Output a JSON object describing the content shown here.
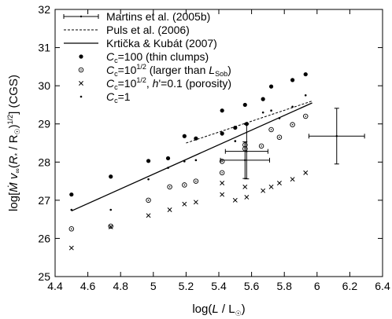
{
  "chart_data": {
    "type": "scatter",
    "xlabel": "log(L/L☉)",
    "ylabel": "log[Ṁ v∞(R*/R☉)^1/2] (CGS)",
    "xlim": [
      4.4,
      6.4
    ],
    "ylim": [
      25,
      32
    ],
    "xticks": [
      "4.4",
      "4.6",
      "4.8",
      "5",
      "5.2",
      "5.4",
      "5.6",
      "5.8",
      "6",
      "6.2",
      "6.4"
    ],
    "yticks": [
      "25",
      "26",
      "27",
      "28",
      "29",
      "30",
      "31",
      "32"
    ],
    "grid": false,
    "legend_position": "top-left",
    "legend": [
      "Martins et al. (2005b)",
      "Puls et al. (2006)",
      "Krtička & Kubát (2007)",
      "Cc=100 (thin clumps)",
      "Cc=10^1/2 (larger than L_Sob)",
      "Cc=10^1/2, h'=0.1 (porosity)",
      "Cc=1"
    ],
    "series": [
      {
        "name": "Martins et al. (2005b)",
        "marker": "errorbar",
        "points": [
          {
            "x": 5.57,
            "y": 28.28,
            "xerr": 0.13,
            "yerr": 0.72
          },
          {
            "x": 5.56,
            "y": 28.05,
            "xerr": 0.15,
            "yerr": 0.48
          },
          {
            "x": 6.12,
            "y": 28.68,
            "xerr": 0.17,
            "yerr": 0.73
          }
        ]
      },
      {
        "name": "Puls et al. (2006)",
        "marker": "dashed-line",
        "points": [
          {
            "x": 5.2,
            "y": 28.5
          },
          {
            "x": 5.97,
            "y": 29.6
          }
        ]
      },
      {
        "name": "Krtička & Kubát (2007)",
        "marker": "solid-line",
        "points": [
          {
            "x": 4.5,
            "y": 26.72
          },
          {
            "x": 5.97,
            "y": 29.55
          }
        ]
      },
      {
        "name": "Cc=100 (thin clumps)",
        "marker": "filled-circle",
        "points": [
          {
            "x": 4.5,
            "y": 27.15
          },
          {
            "x": 4.74,
            "y": 27.62
          },
          {
            "x": 4.97,
            "y": 28.03
          },
          {
            "x": 5.09,
            "y": 28.1
          },
          {
            "x": 5.19,
            "y": 28.68
          },
          {
            "x": 5.26,
            "y": 28.62
          },
          {
            "x": 5.42,
            "y": 29.35
          },
          {
            "x": 5.42,
            "y": 28.75
          },
          {
            "x": 5.5,
            "y": 28.9
          },
          {
            "x": 5.56,
            "y": 29.5
          },
          {
            "x": 5.57,
            "y": 29.0
          },
          {
            "x": 5.67,
            "y": 29.65
          },
          {
            "x": 5.72,
            "y": 29.98
          },
          {
            "x": 5.85,
            "y": 30.15
          },
          {
            "x": 5.93,
            "y": 30.3
          }
        ]
      },
      {
        "name": "Cc=10^1/2 (larger than L_Sob)",
        "marker": "dotted-circle",
        "points": [
          {
            "x": 4.5,
            "y": 26.25
          },
          {
            "x": 4.74,
            "y": 26.32
          },
          {
            "x": 4.97,
            "y": 27.0
          },
          {
            "x": 5.1,
            "y": 27.35
          },
          {
            "x": 5.19,
            "y": 27.4
          },
          {
            "x": 5.26,
            "y": 27.5
          },
          {
            "x": 5.42,
            "y": 28.02
          },
          {
            "x": 5.42,
            "y": 27.72
          },
          {
            "x": 5.56,
            "y": 28.45
          },
          {
            "x": 5.56,
            "y": 28.35
          },
          {
            "x": 5.66,
            "y": 28.42
          },
          {
            "x": 5.72,
            "y": 28.85
          },
          {
            "x": 5.77,
            "y": 28.65
          },
          {
            "x": 5.85,
            "y": 28.98
          },
          {
            "x": 5.93,
            "y": 29.2
          }
        ]
      },
      {
        "name": "Cc=10^1/2, h'=0.1 (porosity)",
        "marker": "cross",
        "points": [
          {
            "x": 4.5,
            "y": 25.75
          },
          {
            "x": 4.74,
            "y": 26.3
          },
          {
            "x": 4.97,
            "y": 26.6
          },
          {
            "x": 5.1,
            "y": 26.75
          },
          {
            "x": 5.19,
            "y": 26.9
          },
          {
            "x": 5.26,
            "y": 26.95
          },
          {
            "x": 5.42,
            "y": 27.45
          },
          {
            "x": 5.42,
            "y": 27.15
          },
          {
            "x": 5.5,
            "y": 27.0
          },
          {
            "x": 5.56,
            "y": 27.35
          },
          {
            "x": 5.57,
            "y": 27.08
          },
          {
            "x": 5.67,
            "y": 27.25
          },
          {
            "x": 5.72,
            "y": 27.35
          },
          {
            "x": 5.77,
            "y": 27.45
          },
          {
            "x": 5.85,
            "y": 27.55
          },
          {
            "x": 5.93,
            "y": 27.72
          }
        ]
      },
      {
        "name": "Cc=1",
        "marker": "small-dot",
        "points": [
          {
            "x": 4.5,
            "y": 26.75
          },
          {
            "x": 4.74,
            "y": 26.75
          },
          {
            "x": 4.97,
            "y": 27.55
          },
          {
            "x": 5.09,
            "y": 27.85
          },
          {
            "x": 5.19,
            "y": 28.02
          },
          {
            "x": 5.26,
            "y": 28.05
          },
          {
            "x": 5.42,
            "y": 28.72
          },
          {
            "x": 5.5,
            "y": 28.55
          },
          {
            "x": 5.56,
            "y": 29.0
          },
          {
            "x": 5.67,
            "y": 29.3
          },
          {
            "x": 5.72,
            "y": 29.35
          },
          {
            "x": 5.77,
            "y": 29.15
          },
          {
            "x": 5.85,
            "y": 29.45
          },
          {
            "x": 5.93,
            "y": 29.75
          }
        ]
      }
    ]
  }
}
